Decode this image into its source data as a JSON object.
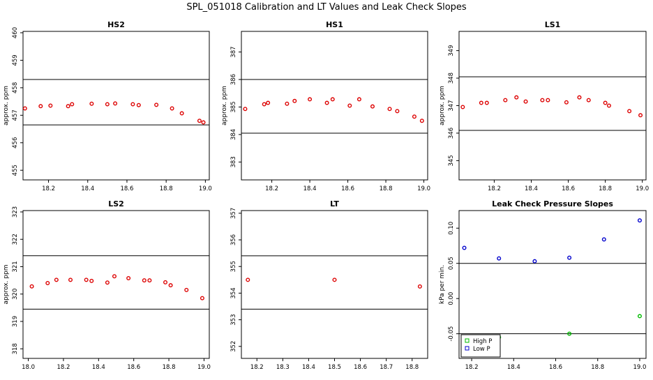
{
  "page_title": "SPL_051018  Calibration and LT Values and Leak Check Slopes",
  "chart_data": [
    {
      "id": "hs2",
      "type": "scatter",
      "title": "HS2",
      "xlabel": "",
      "ylabel": "approx. ppm",
      "xlim": [
        18.07,
        19.02
      ],
      "ylim": [
        454.65,
        460.05
      ],
      "xticks": [
        18.2,
        18.4,
        18.6,
        18.8,
        19.0
      ],
      "xtick_labels": [
        "18.2",
        "18.4",
        "18.6",
        "18.8",
        "19.0"
      ],
      "yticks": [
        455,
        456,
        457,
        458,
        459,
        460
      ],
      "ytick_labels": [
        "455",
        "456",
        "457",
        "458",
        "459",
        "460"
      ],
      "hlines": [
        458.3,
        456.65
      ],
      "grid": false,
      "series": [
        {
          "color": "#dd0000",
          "marker": "circle",
          "x": [
            18.08,
            18.16,
            18.21,
            18.3,
            18.32,
            18.42,
            18.5,
            18.54,
            18.63,
            18.66,
            18.75,
            18.83,
            18.88,
            18.97,
            18.99
          ],
          "y": [
            457.25,
            457.33,
            457.35,
            457.33,
            457.4,
            457.42,
            457.4,
            457.43,
            457.4,
            457.37,
            457.38,
            457.25,
            457.07,
            456.8,
            456.74
          ]
        }
      ]
    },
    {
      "id": "hs1",
      "type": "scatter",
      "title": "HS1",
      "xlabel": "",
      "ylabel": "approx. ppm",
      "xlim": [
        18.04,
        19.02
      ],
      "ylim": [
        382.35,
        387.75
      ],
      "xticks": [
        18.2,
        18.4,
        18.6,
        18.8,
        19.0
      ],
      "xtick_labels": [
        "18.2",
        "18.4",
        "18.6",
        "18.8",
        "19.0"
      ],
      "yticks": [
        383,
        384,
        385,
        386,
        387
      ],
      "ytick_labels": [
        "383",
        "384",
        "385",
        "386",
        "387"
      ],
      "hlines": [
        386.0,
        384.05
      ],
      "grid": false,
      "series": [
        {
          "color": "#dd0000",
          "marker": "circle",
          "x": [
            18.06,
            18.16,
            18.18,
            18.28,
            18.32,
            18.4,
            18.49,
            18.52,
            18.61,
            18.66,
            18.73,
            18.82,
            18.86,
            18.95,
            18.99
          ],
          "y": [
            384.93,
            385.1,
            385.15,
            385.12,
            385.22,
            385.28,
            385.15,
            385.28,
            385.05,
            385.28,
            385.02,
            384.93,
            384.85,
            384.65,
            384.5
          ]
        }
      ]
    },
    {
      "id": "ls1",
      "type": "scatter",
      "title": "LS1",
      "xlabel": "",
      "ylabel": "approx. ppm",
      "xlim": [
        18.01,
        19.02
      ],
      "ylim": [
        344.3,
        349.7
      ],
      "xticks": [
        18.2,
        18.4,
        18.6,
        18.8,
        19.0
      ],
      "xtick_labels": [
        "18.2",
        "18.4",
        "18.6",
        "18.8",
        "19.0"
      ],
      "yticks": [
        345,
        346,
        347,
        348,
        349
      ],
      "ytick_labels": [
        "345",
        "346",
        "347",
        "348",
        "349"
      ],
      "hlines": [
        348.05,
        346.1
      ],
      "grid": false,
      "series": [
        {
          "color": "#dd0000",
          "marker": "circle",
          "x": [
            18.03,
            18.13,
            18.16,
            18.26,
            18.32,
            18.37,
            18.46,
            18.49,
            18.59,
            18.66,
            18.71,
            18.8,
            18.82,
            18.93,
            18.99
          ],
          "y": [
            346.95,
            347.1,
            347.1,
            347.2,
            347.3,
            347.15,
            347.2,
            347.2,
            347.12,
            347.3,
            347.2,
            347.1,
            347.0,
            346.8,
            346.65
          ]
        }
      ]
    },
    {
      "id": "ls2",
      "type": "scatter",
      "title": "LS2",
      "xlabel": "",
      "ylabel": "approx. ppm",
      "xlim": [
        17.97,
        19.03
      ],
      "ylim": [
        317.65,
        323.05
      ],
      "xticks": [
        18.0,
        18.2,
        18.4,
        18.6,
        18.8,
        19.0
      ],
      "xtick_labels": [
        "18.0",
        "18.2",
        "18.4",
        "18.6",
        "18.8",
        "19.0"
      ],
      "yticks": [
        318,
        319,
        320,
        321,
        322,
        323
      ],
      "ytick_labels": [
        "318",
        "319",
        "320",
        "321",
        "322",
        "323"
      ],
      "hlines": [
        321.4,
        319.45
      ],
      "grid": false,
      "series": [
        {
          "color": "#dd0000",
          "marker": "circle",
          "x": [
            18.02,
            18.11,
            18.16,
            18.24,
            18.33,
            18.36,
            18.45,
            18.49,
            18.57,
            18.66,
            18.69,
            18.78,
            18.81,
            18.9,
            18.99
          ],
          "y": [
            320.28,
            320.4,
            320.52,
            320.52,
            320.52,
            320.48,
            320.42,
            320.65,
            320.58,
            320.5,
            320.5,
            320.43,
            320.32,
            320.15,
            319.85
          ]
        }
      ]
    },
    {
      "id": "lt",
      "type": "scatter",
      "title": "LT",
      "xlabel": "",
      "ylabel": "",
      "xlim": [
        18.14,
        18.86
      ],
      "ylim": [
        351.55,
        357.1
      ],
      "xticks": [
        18.2,
        18.3,
        18.4,
        18.5,
        18.6,
        18.7,
        18.8
      ],
      "xtick_labels": [
        "18.2",
        "18.3",
        "18.4",
        "18.5",
        "18.6",
        "18.7",
        "18.8"
      ],
      "yticks": [
        352,
        353,
        354,
        355,
        356,
        357
      ],
      "ytick_labels": [
        "352",
        "353",
        "354",
        "355",
        "356",
        "357"
      ],
      "hlines": [
        355.4,
        353.4
      ],
      "grid": false,
      "series": [
        {
          "color": "#dd0000",
          "marker": "circle",
          "x": [
            18.165,
            18.5,
            18.83
          ],
          "y": [
            354.5,
            354.5,
            354.25
          ]
        }
      ]
    },
    {
      "id": "leak",
      "type": "scatter",
      "title": "Leak Check Pressure Slopes",
      "xlabel": "",
      "ylabel": "kPa per min.",
      "xlim": [
        18.14,
        19.03
      ],
      "ylim": [
        -0.085,
        0.125
      ],
      "xticks": [
        18.2,
        18.4,
        18.6,
        18.8,
        19.0
      ],
      "xtick_labels": [
        "18.2",
        "18.4",
        "18.6",
        "18.8",
        "19.0"
      ],
      "yticks": [
        -0.05,
        0.0,
        0.05,
        0.1
      ],
      "ytick_labels": [
        "-0.05",
        "0.00",
        "0.05",
        "0.10"
      ],
      "hlines": [
        0.05,
        -0.05
      ],
      "grid": false,
      "legend": {
        "position": "bottom-left",
        "entries": [
          "High P",
          "Low P"
        ]
      },
      "series": [
        {
          "name": "High P",
          "color": "#00bb00",
          "marker": "circle",
          "x": [
            18.33,
            18.665,
            19.0
          ],
          "y": [
            -0.055,
            -0.05,
            -0.025
          ]
        },
        {
          "name": "Low P",
          "color": "#0000cc",
          "marker": "circle",
          "x": [
            18.165,
            18.33,
            18.5,
            18.665,
            18.83,
            19.0
          ],
          "y": [
            0.072,
            0.057,
            0.053,
            0.058,
            0.084,
            0.111
          ]
        }
      ]
    }
  ]
}
